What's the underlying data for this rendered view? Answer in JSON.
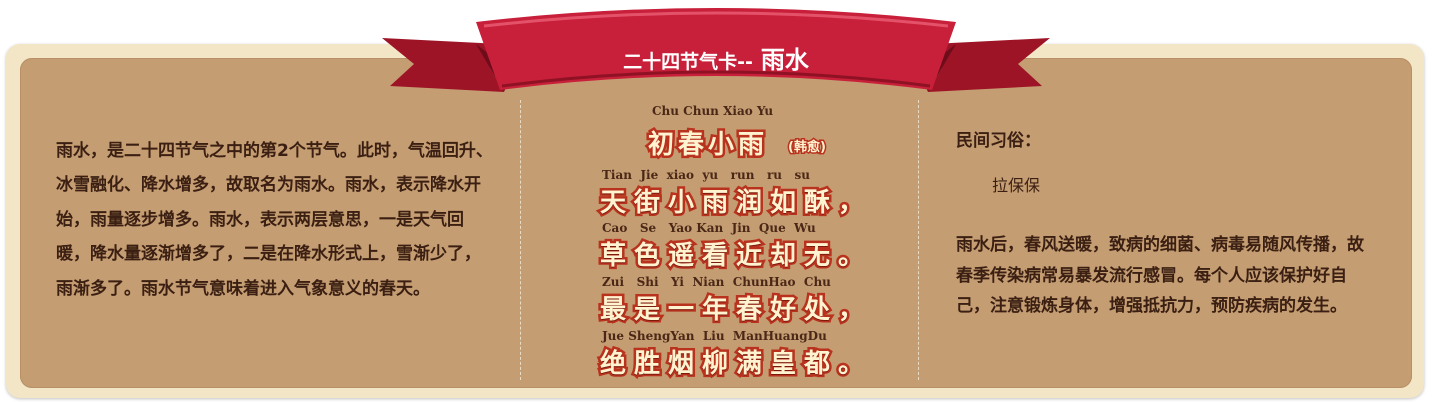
{
  "banner": {
    "title_prefix": "二十四节气卡--",
    "title_term": "雨水"
  },
  "intro": {
    "text": "雨水，是二十四节气之中的第2个节气。此时，气温回升、冰雪融化、降水增多，故取名为雨水。雨水，表示降水开始，雨量逐步增多。雨水，表示两层意思，一是天气回暖，降水量逐渐增多了，二是在降水形式上，雪渐少了，雨渐多了。雨水节气意味着进入气象意义的春天。"
  },
  "poem": {
    "title_pinyin": "Chu Chun Xiao Yu",
    "title": "初春小雨",
    "author": "(韩愈)",
    "lines": [
      {
        "pinyin": "Tian  Jie  xiao  yu   run   ru   su",
        "text": "天街小雨润如酥，"
      },
      {
        "pinyin": "Cao   Se   Yao Kan  Jin  Que  Wu",
        "text": "草色遥看近却无。"
      },
      {
        "pinyin": "Zui   Shi   Yi  Nian  ChunHao  Chu",
        "text": "最是一年春好处，"
      },
      {
        "pinyin": "Jue ShengYan  Liu  ManHuangDu",
        "text": "绝胜烟柳满皇都。"
      }
    ]
  },
  "customs": {
    "label": "民间习俗：",
    "item": "拉保保"
  },
  "health": {
    "text": "雨水后，春风送暖，致病的细菌、病毒易随风传播，故春季传染病常易暴发流行感冒。每个人应该保护好自己，注意锻炼身体，增强抵抗力，预防疾病的发生。"
  },
  "colors": {
    "ribbon": "#c81f3a",
    "card": "#c59d72",
    "frame": "#f3e6c6",
    "poem_fill": "#fff3d0",
    "poem_stroke": "#b8321e"
  }
}
